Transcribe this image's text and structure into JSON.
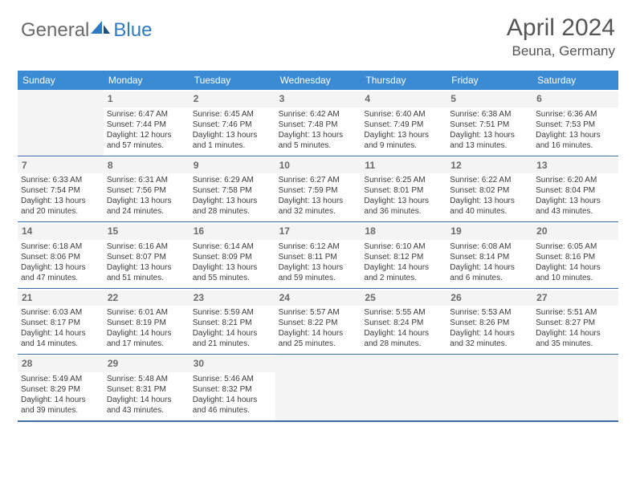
{
  "brand": {
    "text_gray": "General",
    "text_blue": "Blue"
  },
  "title": "April 2024",
  "location": "Beuna, Germany",
  "colors": {
    "header_bg": "#3b8bd4",
    "header_text": "#ffffff",
    "rule": "#3b6fa3",
    "daynum_bg": "#f4f4f4",
    "text": "#3a3a3a",
    "logo_blue": "#2f7bc2",
    "logo_gray": "#6a6a6a"
  },
  "day_names": [
    "Sunday",
    "Monday",
    "Tuesday",
    "Wednesday",
    "Thursday",
    "Friday",
    "Saturday"
  ],
  "weeks": [
    [
      null,
      {
        "n": "1",
        "sr": "6:47 AM",
        "ss": "7:44 PM",
        "dl": "12 hours and 57 minutes."
      },
      {
        "n": "2",
        "sr": "6:45 AM",
        "ss": "7:46 PM",
        "dl": "13 hours and 1 minutes."
      },
      {
        "n": "3",
        "sr": "6:42 AM",
        "ss": "7:48 PM",
        "dl": "13 hours and 5 minutes."
      },
      {
        "n": "4",
        "sr": "6:40 AM",
        "ss": "7:49 PM",
        "dl": "13 hours and 9 minutes."
      },
      {
        "n": "5",
        "sr": "6:38 AM",
        "ss": "7:51 PM",
        "dl": "13 hours and 13 minutes."
      },
      {
        "n": "6",
        "sr": "6:36 AM",
        "ss": "7:53 PM",
        "dl": "13 hours and 16 minutes."
      }
    ],
    [
      {
        "n": "7",
        "sr": "6:33 AM",
        "ss": "7:54 PM",
        "dl": "13 hours and 20 minutes."
      },
      {
        "n": "8",
        "sr": "6:31 AM",
        "ss": "7:56 PM",
        "dl": "13 hours and 24 minutes."
      },
      {
        "n": "9",
        "sr": "6:29 AM",
        "ss": "7:58 PM",
        "dl": "13 hours and 28 minutes."
      },
      {
        "n": "10",
        "sr": "6:27 AM",
        "ss": "7:59 PM",
        "dl": "13 hours and 32 minutes."
      },
      {
        "n": "11",
        "sr": "6:25 AM",
        "ss": "8:01 PM",
        "dl": "13 hours and 36 minutes."
      },
      {
        "n": "12",
        "sr": "6:22 AM",
        "ss": "8:02 PM",
        "dl": "13 hours and 40 minutes."
      },
      {
        "n": "13",
        "sr": "6:20 AM",
        "ss": "8:04 PM",
        "dl": "13 hours and 43 minutes."
      }
    ],
    [
      {
        "n": "14",
        "sr": "6:18 AM",
        "ss": "8:06 PM",
        "dl": "13 hours and 47 minutes."
      },
      {
        "n": "15",
        "sr": "6:16 AM",
        "ss": "8:07 PM",
        "dl": "13 hours and 51 minutes."
      },
      {
        "n": "16",
        "sr": "6:14 AM",
        "ss": "8:09 PM",
        "dl": "13 hours and 55 minutes."
      },
      {
        "n": "17",
        "sr": "6:12 AM",
        "ss": "8:11 PM",
        "dl": "13 hours and 59 minutes."
      },
      {
        "n": "18",
        "sr": "6:10 AM",
        "ss": "8:12 PM",
        "dl": "14 hours and 2 minutes."
      },
      {
        "n": "19",
        "sr": "6:08 AM",
        "ss": "8:14 PM",
        "dl": "14 hours and 6 minutes."
      },
      {
        "n": "20",
        "sr": "6:05 AM",
        "ss": "8:16 PM",
        "dl": "14 hours and 10 minutes."
      }
    ],
    [
      {
        "n": "21",
        "sr": "6:03 AM",
        "ss": "8:17 PM",
        "dl": "14 hours and 14 minutes."
      },
      {
        "n": "22",
        "sr": "6:01 AM",
        "ss": "8:19 PM",
        "dl": "14 hours and 17 minutes."
      },
      {
        "n": "23",
        "sr": "5:59 AM",
        "ss": "8:21 PM",
        "dl": "14 hours and 21 minutes."
      },
      {
        "n": "24",
        "sr": "5:57 AM",
        "ss": "8:22 PM",
        "dl": "14 hours and 25 minutes."
      },
      {
        "n": "25",
        "sr": "5:55 AM",
        "ss": "8:24 PM",
        "dl": "14 hours and 28 minutes."
      },
      {
        "n": "26",
        "sr": "5:53 AM",
        "ss": "8:26 PM",
        "dl": "14 hours and 32 minutes."
      },
      {
        "n": "27",
        "sr": "5:51 AM",
        "ss": "8:27 PM",
        "dl": "14 hours and 35 minutes."
      }
    ],
    [
      {
        "n": "28",
        "sr": "5:49 AM",
        "ss": "8:29 PM",
        "dl": "14 hours and 39 minutes."
      },
      {
        "n": "29",
        "sr": "5:48 AM",
        "ss": "8:31 PM",
        "dl": "14 hours and 43 minutes."
      },
      {
        "n": "30",
        "sr": "5:46 AM",
        "ss": "8:32 PM",
        "dl": "14 hours and 46 minutes."
      },
      null,
      null,
      null,
      null
    ]
  ],
  "labels": {
    "sunrise": "Sunrise: ",
    "sunset": "Sunset: ",
    "daylight": "Daylight: "
  }
}
